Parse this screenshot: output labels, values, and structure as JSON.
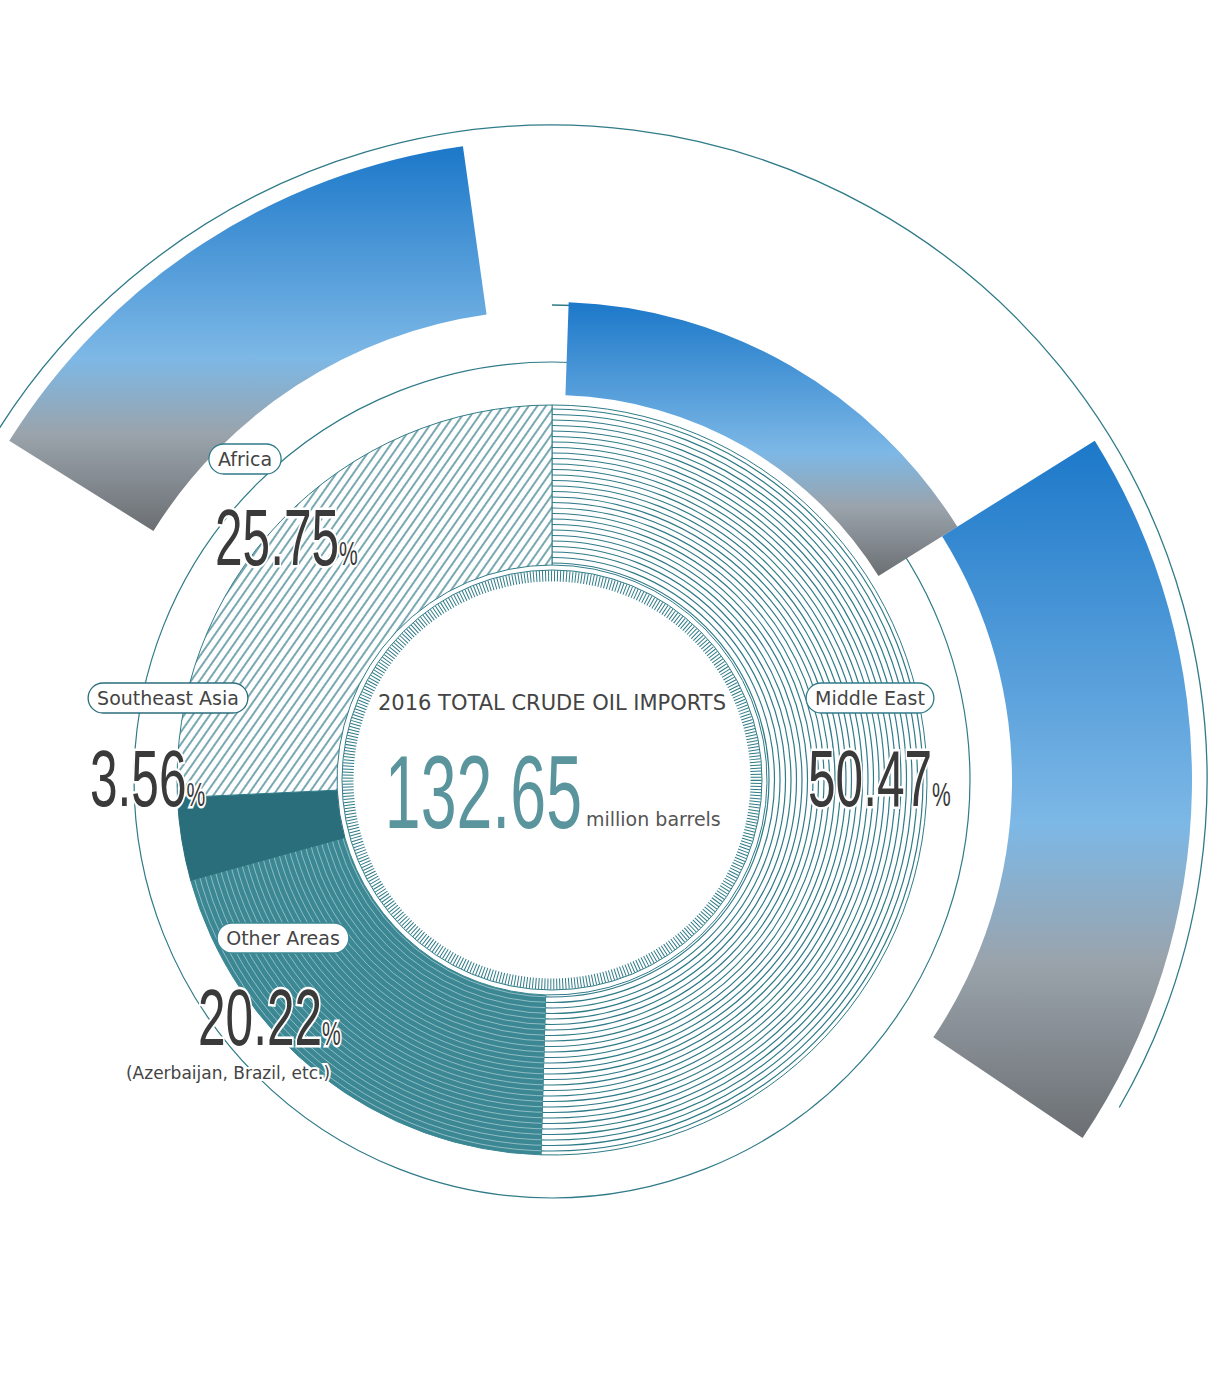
{
  "chart_data": {
    "type": "pie",
    "title": "2016 TOTAL CRUDE OIL IMPORTS",
    "categories": [
      "Middle East",
      "Other Areas",
      "Southeast Asia",
      "Africa"
    ],
    "values": [
      50.47,
      20.22,
      3.56,
      25.75
    ],
    "value_labels": [
      "50.47%",
      "20.22%",
      "3.56%",
      "25.75%"
    ],
    "colors": [
      "#2f7b88",
      "#3b8894",
      "#2a6e7c",
      "#2f7b88"
    ],
    "data_labels": true,
    "total": {
      "value": 132.65,
      "unit": "million barrels"
    },
    "annotations": [
      {
        "category": "Other Areas",
        "text": "(Azerbaijan, Brazil, etc.)"
      }
    ]
  }
}
